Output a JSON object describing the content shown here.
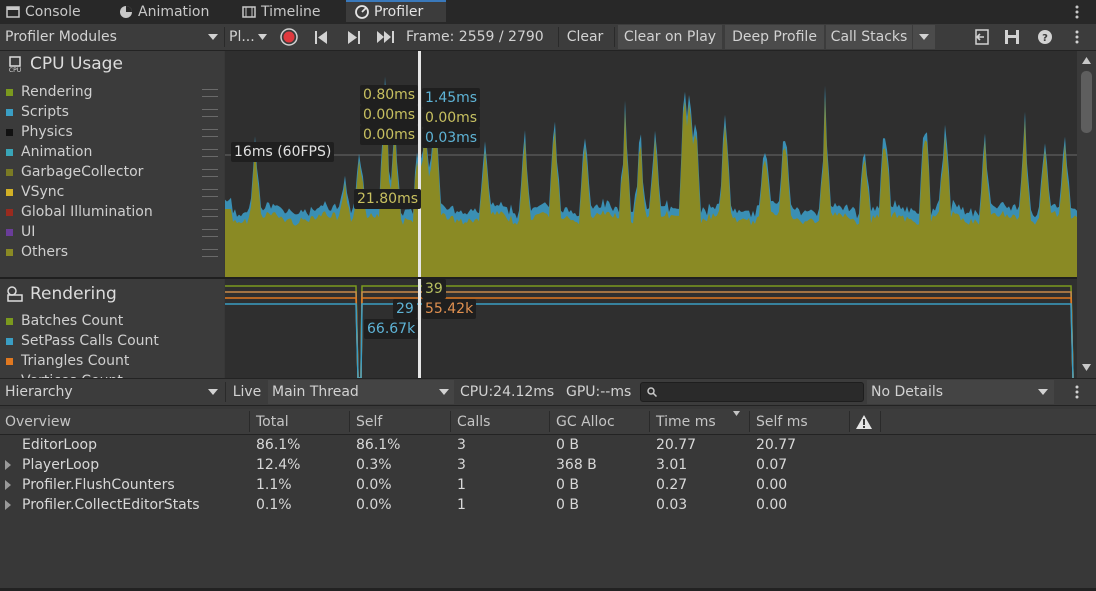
{
  "tabs": [
    {
      "label": "Console",
      "icon": "console-icon"
    },
    {
      "label": "Animation",
      "icon": "animation-icon"
    },
    {
      "label": "Timeline",
      "icon": "timeline-icon"
    },
    {
      "label": "Profiler",
      "icon": "profiler-icon",
      "active": true
    }
  ],
  "toolbar": {
    "modules_label": "Profiler Modules",
    "target_label": "Pl...",
    "frame_label": "Frame: 2559 / 2790",
    "clear_label": "Clear",
    "clear_on_play_label": "Clear on Play",
    "deep_profile_label": "Deep Profile",
    "call_stacks_label": "Call Stacks"
  },
  "cpu_module": {
    "title": "CPU Usage",
    "legend": [
      {
        "label": "Rendering",
        "color": "#7b9a1e"
      },
      {
        "label": "Scripts",
        "color": "#3a9ec4"
      },
      {
        "label": "Physics",
        "color": "#111111"
      },
      {
        "label": "Animation",
        "color": "#39a5b8"
      },
      {
        "label": "GarbageCollector",
        "color": "#7b7b24"
      },
      {
        "label": "VSync",
        "color": "#d2b126"
      },
      {
        "label": "Global Illumination",
        "color": "#9a2a1e"
      },
      {
        "label": "UI",
        "color": "#6a3d9a"
      },
      {
        "label": "Others",
        "color": "#8a8a24"
      }
    ],
    "fps_label": "16ms (60FPS)",
    "left_labels": [
      "0.80ms",
      "0.00ms",
      "0.00ms",
      "21.80ms"
    ],
    "right_labels": [
      "1.45ms",
      "0.00ms",
      "0.03ms"
    ]
  },
  "render_module": {
    "title": "Rendering",
    "legend": [
      {
        "label": "Batches Count",
        "color": "#7b9a1e"
      },
      {
        "label": "SetPass Calls Count",
        "color": "#3a9ec4"
      },
      {
        "label": "Triangles Count",
        "color": "#e07820"
      },
      {
        "label": "Vertices Count",
        "color": "#888888"
      }
    ],
    "labels_right": [
      "39",
      "55.42k"
    ],
    "labels_left": [
      "29",
      "66.67k"
    ]
  },
  "hierarchy": {
    "view_label": "Hierarchy",
    "live_label": "Live",
    "thread_label": "Main Thread",
    "cpu_label": "CPU:24.12ms",
    "gpu_label": "GPU:--ms",
    "search_placeholder": "",
    "details_label": "No Details"
  },
  "table": {
    "columns": [
      "Overview",
      "Total",
      "Self",
      "Calls",
      "GC Alloc",
      "Time ms",
      "Self ms"
    ],
    "rows": [
      {
        "name": "EditorLoop",
        "total": "86.1%",
        "self": "86.1%",
        "calls": "3",
        "gc": "0 B",
        "time": "20.77",
        "selfms": "20.77",
        "expandable": false
      },
      {
        "name": "PlayerLoop",
        "total": "12.4%",
        "self": "0.3%",
        "calls": "3",
        "gc": "368 B",
        "time": "3.01",
        "selfms": "0.07",
        "expandable": true
      },
      {
        "name": "Profiler.FlushCounters",
        "total": "1.1%",
        "self": "0.0%",
        "calls": "1",
        "gc": "0 B",
        "time": "0.27",
        "selfms": "0.00",
        "expandable": true
      },
      {
        "name": "Profiler.CollectEditorStats",
        "total": "0.1%",
        "self": "0.0%",
        "calls": "1",
        "gc": "0 B",
        "time": "0.03",
        "selfms": "0.00",
        "expandable": true
      }
    ]
  }
}
